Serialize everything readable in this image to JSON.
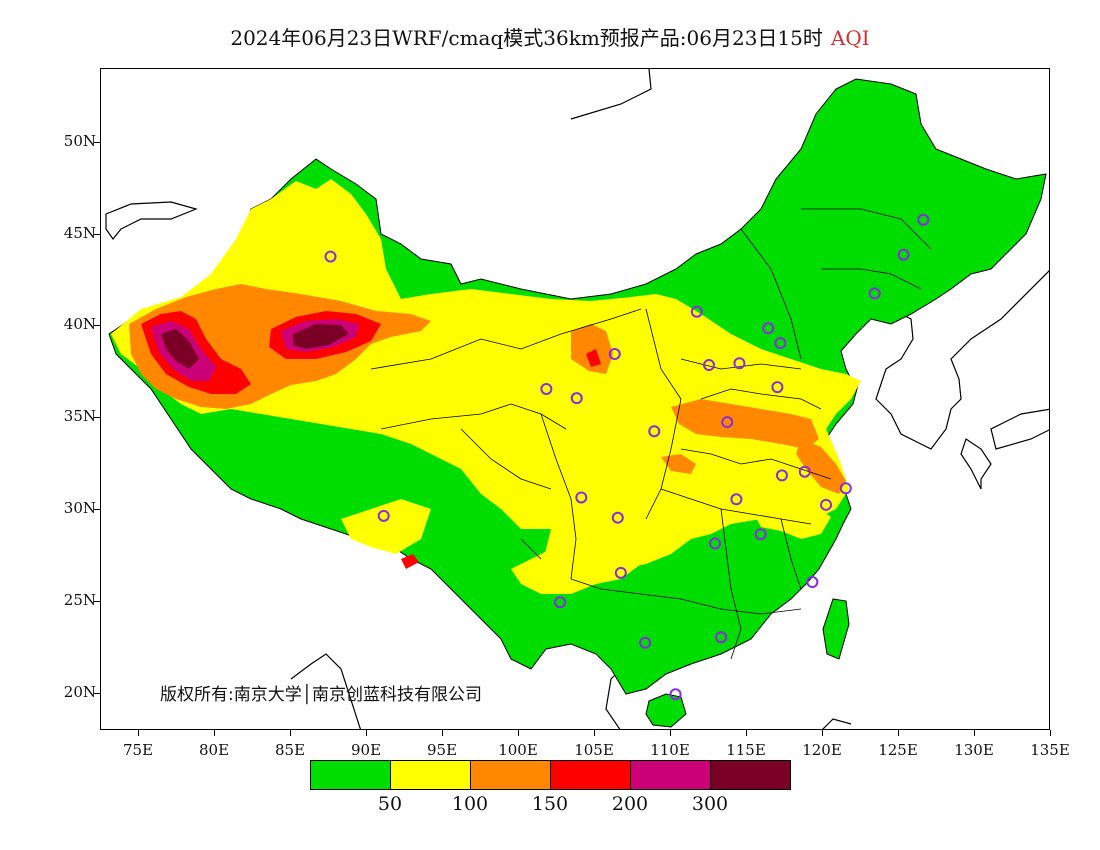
{
  "header": {
    "title": "2024年06月23日WRF/cmaq模式36km预报产品:06月23日15时",
    "variable": "AQI"
  },
  "axes": {
    "lat_labels": [
      "50N",
      "45N",
      "40N",
      "35N",
      "30N",
      "25N",
      "20N"
    ],
    "lat_values": [
      50,
      45,
      40,
      35,
      30,
      25,
      20
    ],
    "lon_labels": [
      "75E",
      "80E",
      "85E",
      "90E",
      "95E",
      "100E",
      "105E",
      "110E",
      "115E",
      "120E",
      "125E",
      "130E",
      "135E"
    ],
    "lon_values": [
      75,
      80,
      85,
      90,
      95,
      100,
      105,
      110,
      115,
      120,
      125,
      130,
      135
    ],
    "lon_range": [
      72.5,
      135
    ],
    "lat_range": [
      18,
      54
    ]
  },
  "copyright": "版权所有:南京大学│南京创蓝科技有限公司",
  "legend": {
    "colors": [
      "#00dd00",
      "#ffff00",
      "#ff8800",
      "#ff0000",
      "#cc0077",
      "#7a0026"
    ],
    "labels": [
      "50",
      "100",
      "150",
      "200",
      "300"
    ]
  },
  "stations": [
    [
      87.6,
      43.8
    ],
    [
      91.1,
      29.7
    ],
    [
      101.8,
      36.6
    ],
    [
      103.8,
      36.1
    ],
    [
      106.3,
      38.5
    ],
    [
      104.1,
      30.7
    ],
    [
      106.5,
      29.6
    ],
    [
      106.7,
      26.6
    ],
    [
      102.7,
      25.0
    ],
    [
      108.9,
      34.3
    ],
    [
      111.7,
      40.8
    ],
    [
      112.5,
      37.9
    ],
    [
      114.5,
      38.0
    ],
    [
      116.4,
      39.9
    ],
    [
      117.2,
      39.1
    ],
    [
      117.0,
      36.7
    ],
    [
      113.7,
      34.8
    ],
    [
      117.3,
      31.9
    ],
    [
      118.8,
      32.1
    ],
    [
      121.5,
      31.2
    ],
    [
      120.2,
      30.3
    ],
    [
      114.3,
      30.6
    ],
    [
      112.9,
      28.2
    ],
    [
      115.9,
      28.7
    ],
    [
      119.3,
      26.1
    ],
    [
      113.3,
      23.1
    ],
    [
      108.3,
      22.8
    ],
    [
      110.3,
      20.0
    ],
    [
      123.4,
      41.8
    ],
    [
      125.3,
      43.9
    ],
    [
      126.6,
      45.8
    ]
  ]
}
